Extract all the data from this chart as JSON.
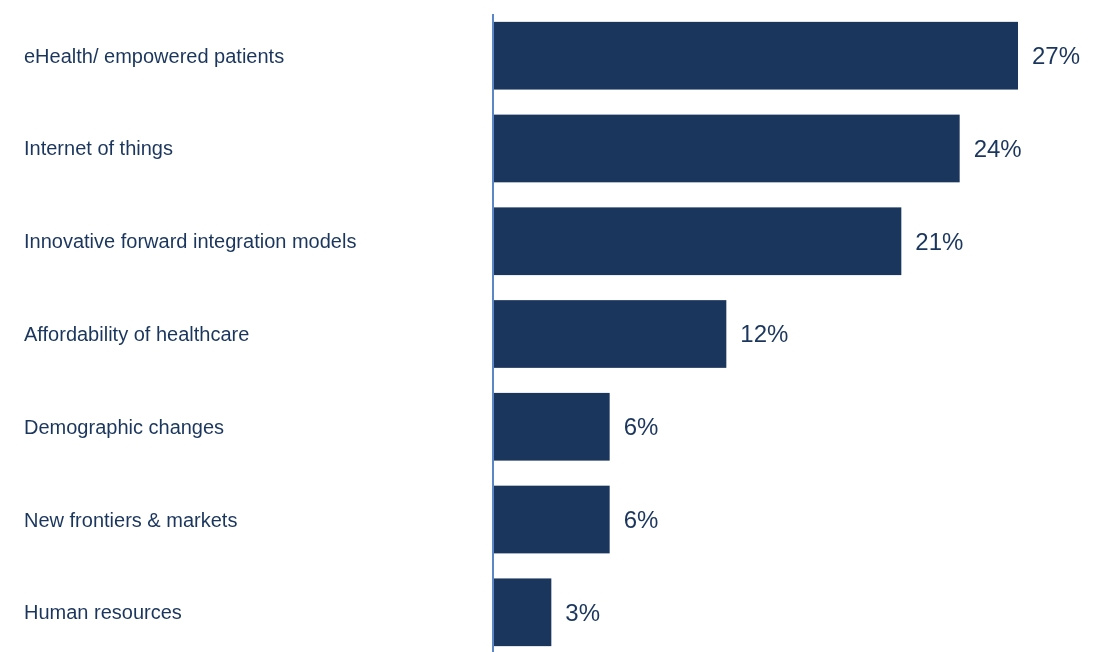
{
  "chart_data": {
    "type": "bar",
    "orientation": "horizontal",
    "categories": [
      "eHealth/ empowered patients",
      "Internet of things",
      "Innovative forward integration models",
      "Affordability of healthcare",
      "Demographic changes",
      "New frontiers & markets",
      "Human resources"
    ],
    "values": [
      27,
      24,
      21,
      12,
      6,
      6,
      3
    ],
    "value_labels": [
      "27%",
      "24%",
      "21%",
      "12%",
      "6%",
      "6%",
      "3%"
    ],
    "color": "#1b365d"
  }
}
